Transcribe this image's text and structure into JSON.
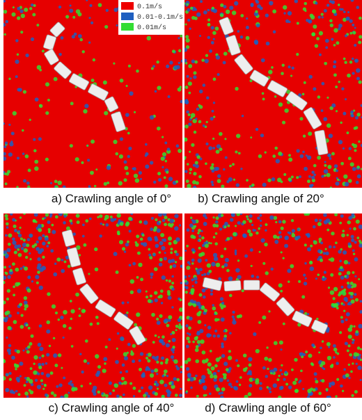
{
  "legend": [
    {
      "label": "0.1m/s",
      "color": "#ee0000"
    },
    {
      "label": "0.01-0.1m/s",
      "color": "#1f5fc0"
    },
    {
      "label": "0.01m/s",
      "color": "#33dd33"
    }
  ],
  "panels": [
    {
      "caption": "a) Crawling angle of 0°"
    },
    {
      "caption": "b) Crawling angle of 20°"
    },
    {
      "caption": "c)  Crawling angle of 40°"
    },
    {
      "caption": "d) Crawling angle of 60°"
    }
  ]
}
